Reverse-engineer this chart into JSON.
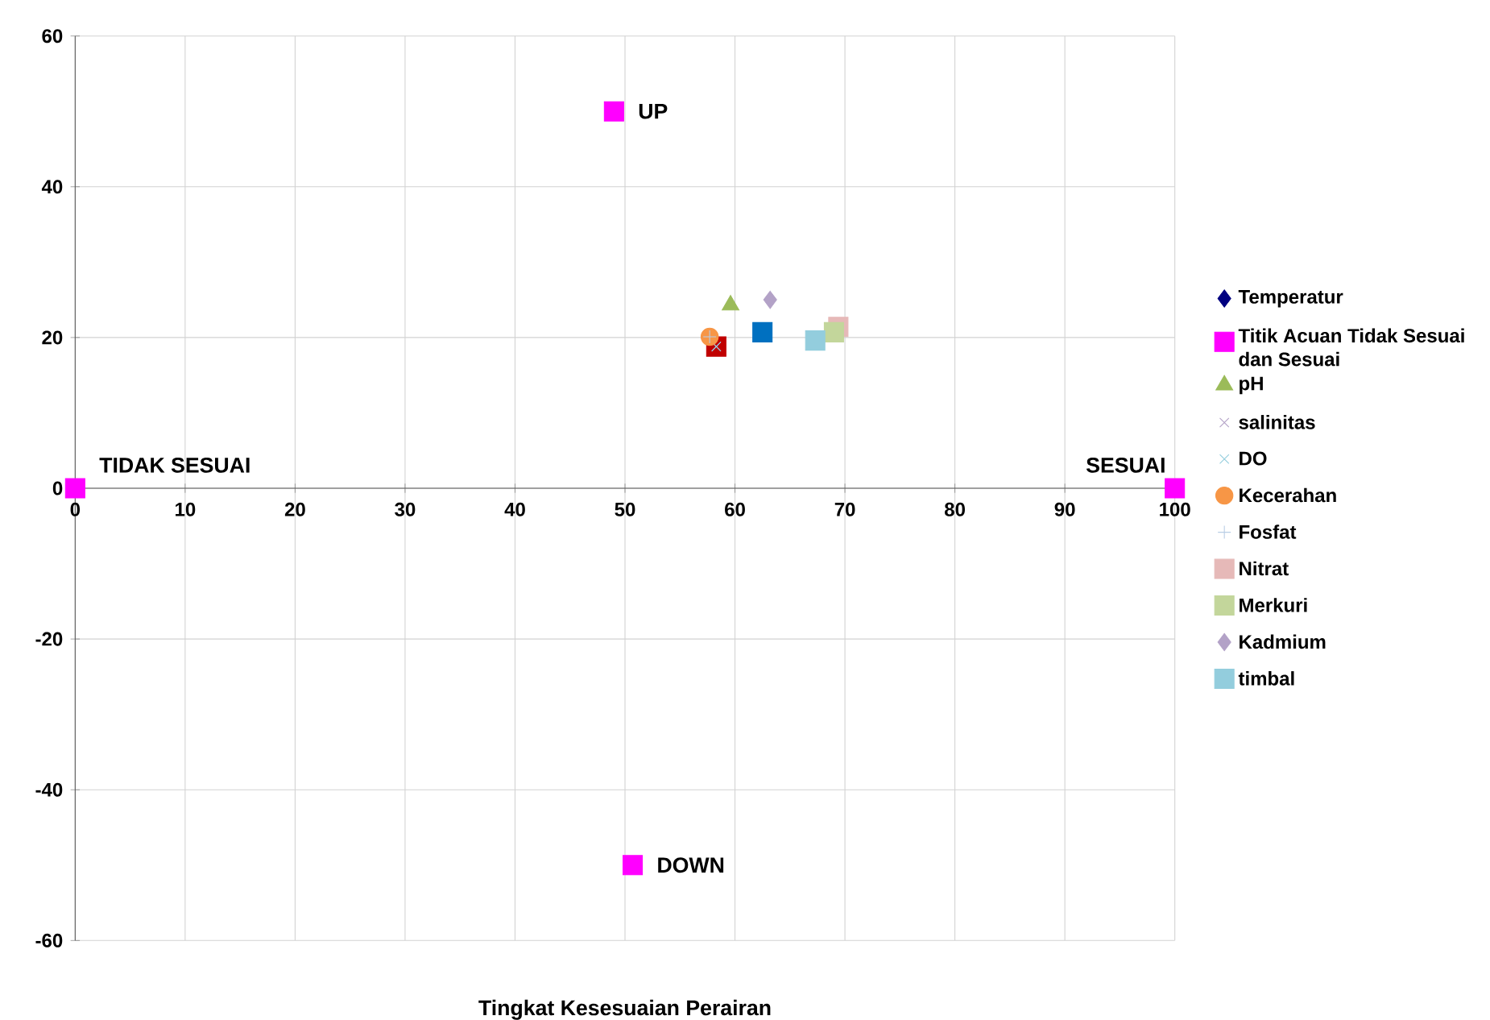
{
  "chart_data": {
    "type": "scatter",
    "xlabel": "Tingkat Kesesuaian Perairan",
    "xlim": [
      0,
      100
    ],
    "ylim": [
      -60,
      60
    ],
    "xticks": [
      0,
      10,
      20,
      30,
      40,
      50,
      60,
      70,
      80,
      90,
      100
    ],
    "yticks": [
      -60,
      -40,
      -20,
      0,
      20,
      40,
      60
    ],
    "grid": true,
    "legend": "right",
    "series": [
      {
        "color": "#c00000",
        "marker": "square",
        "x": [
          58.3
        ],
        "values": [
          18.8
        ]
      },
      {
        "color": "#0070c0",
        "marker": "square",
        "x": [
          62.5
        ],
        "values": [
          20.7
        ]
      },
      {
        "name": "Temperatur",
        "color": "#000080",
        "marker": "diamond",
        "x": [
          null
        ],
        "values": [
          null
        ]
      },
      {
        "name": "Titik Acuan Tidak Sesuai dan Sesuai",
        "color": "#ff00ff",
        "marker": "square",
        "x": [
          0,
          100,
          49,
          50.7
        ],
        "values": [
          0,
          0,
          50,
          -50
        ]
      },
      {
        "name": "pH",
        "color": "#9bbb59",
        "marker": "triangle",
        "x": [
          59.6
        ],
        "values": [
          24.3
        ]
      },
      {
        "name": "salinitas",
        "color": "#b3a2c7",
        "marker": "cross",
        "x": [
          58.3
        ],
        "values": [
          18.8
        ]
      },
      {
        "name": "DO",
        "color": "#93cddd",
        "marker": "cross",
        "x": [
          58.3
        ],
        "values": [
          18.8
        ]
      },
      {
        "name": "Kecerahan",
        "color": "#f79646",
        "marker": "circle",
        "x": [
          57.7
        ],
        "values": [
          20.1
        ]
      },
      {
        "name": "Fosfat",
        "color": "#b9cde5",
        "marker": "plus",
        "x": [
          57.7
        ],
        "values": [
          20.1
        ]
      },
      {
        "name": "Nitrat",
        "color": "#e6b9b8",
        "marker": "square",
        "x": [
          69.4
        ],
        "values": [
          21.4
        ]
      },
      {
        "name": "Merkuri",
        "color": "#c3d69b",
        "marker": "square",
        "x": [
          69.0
        ],
        "values": [
          20.7
        ]
      },
      {
        "name": "Kadmium",
        "color": "#b3a2c7",
        "marker": "diamond",
        "x": [
          63.2
        ],
        "values": [
          25.0
        ]
      },
      {
        "name": "timbal",
        "color": "#93cddd",
        "marker": "square",
        "x": [
          67.3
        ],
        "values": [
          19.6
        ]
      }
    ],
    "annotations": [
      {
        "text": "UP",
        "x": 49,
        "y": 50
      },
      {
        "text": "DOWN",
        "x": 50.7,
        "y": -50
      },
      {
        "text": "TIDAK SESUAI",
        "x": 0,
        "y": 0
      },
      {
        "text": "SESUAI",
        "x": 100,
        "y": 0
      }
    ]
  }
}
